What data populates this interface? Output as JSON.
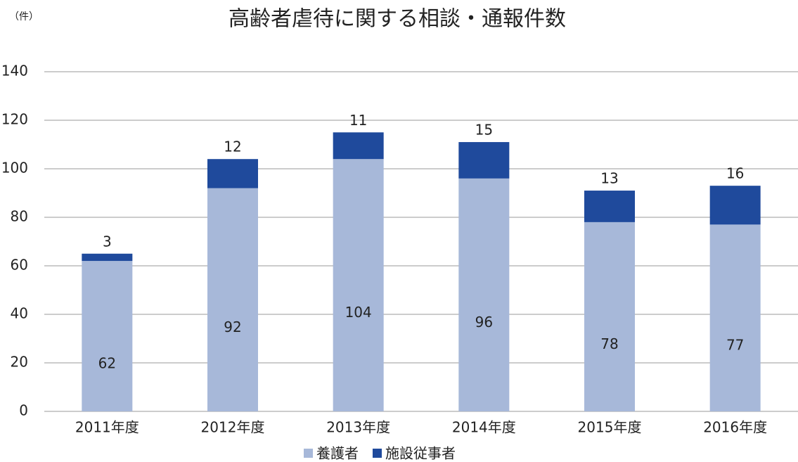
{
  "chart_data": {
    "type": "bar",
    "stacked": true,
    "title": "高齢者虐待に関する相談・通報件数",
    "y_unit": "（件）",
    "categories": [
      "2011年度",
      "2012年度",
      "2013年度",
      "2014年度",
      "2015年度",
      "2016年度"
    ],
    "series": [
      {
        "name": "養護者",
        "color": "#a7b8d9",
        "values": [
          62,
          92,
          104,
          96,
          78,
          77
        ]
      },
      {
        "name": "施設従事者",
        "color": "#1f4a9c",
        "values": [
          3,
          12,
          11,
          15,
          13,
          16
        ]
      }
    ],
    "ylim": [
      0,
      140
    ],
    "yticks": [
      0,
      20,
      40,
      60,
      80,
      100,
      120,
      140
    ],
    "grid": true,
    "legend": "bottom"
  }
}
